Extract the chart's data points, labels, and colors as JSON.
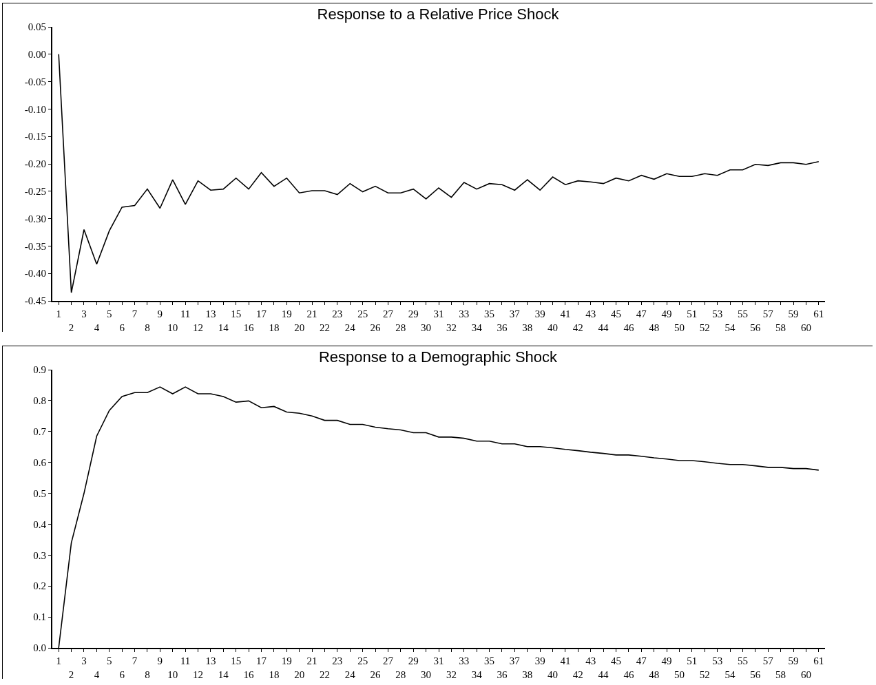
{
  "chart_data": [
    {
      "type": "line",
      "title": "Response to a Relative Price Shock",
      "categories": [
        "1",
        "2",
        "3",
        "4",
        "5",
        "6",
        "7",
        "8",
        "9",
        "10",
        "11",
        "12",
        "13",
        "14",
        "15",
        "16",
        "17",
        "18",
        "19",
        "20",
        "21",
        "22",
        "23",
        "24",
        "25",
        "26",
        "27",
        "28",
        "29",
        "30",
        "31",
        "32",
        "33",
        "34",
        "35",
        "36",
        "37",
        "38",
        "39",
        "40",
        "41",
        "42",
        "43",
        "44",
        "45",
        "46",
        "47",
        "48",
        "49",
        "50",
        "51",
        "52",
        "53",
        "54",
        "55",
        "56",
        "57",
        "58",
        "59",
        "60",
        "61"
      ],
      "series": [
        {
          "color": "#000000",
          "values": [
            0.0,
            -0.435,
            -0.32,
            -0.383,
            -0.322,
            -0.279,
            -0.276,
            -0.246,
            -0.281,
            -0.229,
            -0.274,
            -0.231,
            -0.248,
            -0.246,
            -0.226,
            -0.246,
            -0.216,
            -0.241,
            -0.226,
            -0.253,
            -0.249,
            -0.249,
            -0.256,
            -0.236,
            -0.251,
            -0.241,
            -0.253,
            -0.253,
            -0.246,
            -0.264,
            -0.244,
            -0.261,
            -0.234,
            -0.246,
            -0.236,
            -0.238,
            -0.248,
            -0.229,
            -0.248,
            -0.224,
            -0.238,
            -0.231,
            -0.233,
            -0.236,
            -0.226,
            -0.231,
            -0.221,
            -0.228,
            -0.218,
            -0.223,
            -0.223,
            -0.218,
            -0.221,
            -0.211,
            -0.211,
            -0.201,
            -0.203,
            -0.198,
            -0.198,
            -0.201,
            -0.196
          ]
        }
      ],
      "ylim": [
        -0.45,
        0.05
      ],
      "yticks": [
        {
          "value": -0.45,
          "label": "-0.45"
        },
        {
          "value": -0.4,
          "label": "-0.40"
        },
        {
          "value": -0.35,
          "label": "-0.35"
        },
        {
          "value": -0.3,
          "label": "-0.30"
        },
        {
          "value": -0.25,
          "label": "-0.25"
        },
        {
          "value": -0.2,
          "label": "-0.20"
        },
        {
          "value": -0.15,
          "label": "-0.15"
        },
        {
          "value": -0.1,
          "label": "-0.10"
        },
        {
          "value": -0.05,
          "label": "-0.05"
        },
        {
          "value": 0,
          "label": "0.00"
        },
        {
          "value": 0.05,
          "label": "0.05"
        }
      ],
      "grid": false,
      "legend": false,
      "marker": "none",
      "line_style": "solid"
    },
    {
      "type": "line",
      "title": "Response to a Demographic Shock",
      "categories": [
        "1",
        "2",
        "3",
        "4",
        "5",
        "6",
        "7",
        "8",
        "9",
        "10",
        "11",
        "12",
        "13",
        "14",
        "15",
        "16",
        "17",
        "18",
        "19",
        "20",
        "21",
        "22",
        "23",
        "24",
        "25",
        "26",
        "27",
        "28",
        "29",
        "30",
        "31",
        "32",
        "33",
        "34",
        "35",
        "36",
        "37",
        "38",
        "39",
        "40",
        "41",
        "42",
        "43",
        "44",
        "45",
        "46",
        "47",
        "48",
        "49",
        "50",
        "51",
        "52",
        "53",
        "54",
        "55",
        "56",
        "57",
        "58",
        "59",
        "60",
        "61"
      ],
      "series": [
        {
          "color": "#000000",
          "values": [
            0.0,
            0.34,
            0.5,
            0.685,
            0.768,
            0.813,
            0.826,
            0.826,
            0.844,
            0.822,
            0.844,
            0.822,
            0.822,
            0.813,
            0.795,
            0.799,
            0.777,
            0.781,
            0.763,
            0.759,
            0.75,
            0.736,
            0.736,
            0.723,
            0.723,
            0.714,
            0.709,
            0.705,
            0.696,
            0.696,
            0.682,
            0.682,
            0.678,
            0.669,
            0.669,
            0.66,
            0.66,
            0.651,
            0.651,
            0.647,
            0.642,
            0.638,
            0.633,
            0.629,
            0.624,
            0.624,
            0.62,
            0.615,
            0.611,
            0.606,
            0.606,
            0.602,
            0.597,
            0.593,
            0.593,
            0.589,
            0.584,
            0.584,
            0.58,
            0.58,
            0.575
          ]
        }
      ],
      "ylim": [
        0,
        0.9
      ],
      "yticks": [
        {
          "value": 0,
          "label": "0.0"
        },
        0.1,
        0.2,
        0.3,
        0.4,
        0.5,
        0.6,
        0.7,
        0.8,
        0.9
      ],
      "grid": false,
      "legend": false,
      "marker": "none",
      "line_style": "solid"
    }
  ]
}
